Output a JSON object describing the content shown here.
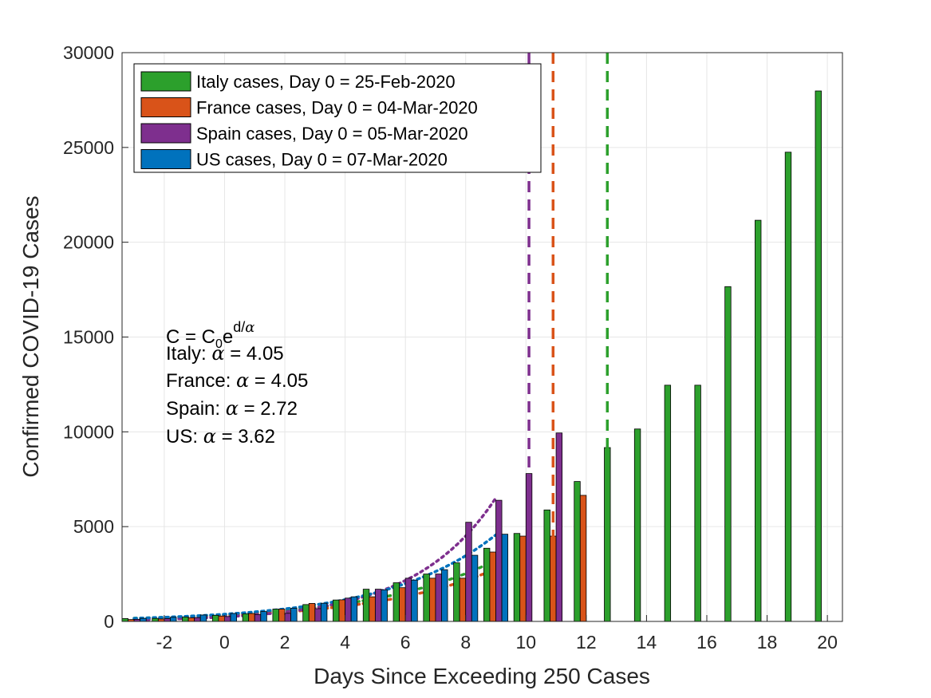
{
  "chart_data": {
    "type": "bar",
    "xlabel": "Days Since Exceeding 250 Cases",
    "ylabel": "Confirmed COVID-19 Cases",
    "xlim": [
      -3.4,
      20.5
    ],
    "ylim": [
      0,
      30000
    ],
    "xticks": [
      -2,
      0,
      2,
      4,
      6,
      8,
      10,
      12,
      14,
      16,
      18,
      20
    ],
    "yticks": [
      0,
      5000,
      10000,
      15000,
      20000,
      25000,
      30000
    ],
    "grid": true,
    "legend_position": "top-left",
    "series": [
      {
        "name": "Italy cases, Day 0 = 25-Feb-2020",
        "color": "#2ca02c",
        "days": [
          -3,
          -2,
          -1,
          0,
          1,
          2,
          3,
          4,
          5,
          6,
          7,
          8,
          9,
          10,
          11,
          12,
          13,
          14,
          15,
          16,
          17,
          18,
          19,
          20
        ],
        "values": [
          150,
          160,
          230,
          322,
          400,
          650,
          890,
          1130,
          1700,
          2040,
          2500,
          3090,
          3860,
          4640,
          5880,
          7380,
          9170,
          10150,
          12460,
          12460,
          17660,
          21160,
          24750,
          27980
        ]
      },
      {
        "name": "France cases, Day 0 = 04-Mar-2020",
        "color": "#d95319",
        "days": [
          -3,
          -2,
          -1,
          0,
          1,
          2,
          3,
          4,
          5,
          6,
          7,
          8,
          9,
          10,
          11,
          12
        ],
        "values": [
          100,
          130,
          190,
          285,
          420,
          650,
          950,
          1140,
          1300,
          1780,
          2280,
          2280,
          3660,
          4500,
          4500,
          6650
        ]
      },
      {
        "name": "Spain cases, Day 0 = 05-Mar-2020",
        "color": "#7e2f8e",
        "days": [
          -3,
          -2,
          -1,
          0,
          1,
          2,
          3,
          4,
          5,
          6,
          7,
          8,
          9,
          10,
          11
        ],
        "values": [
          110,
          150,
          200,
          260,
          365,
          430,
          674,
          1230,
          1700,
          2280,
          2500,
          5230,
          6390,
          7800,
          9940
        ]
      },
      {
        "name": "US cases, Day 0 = 07-Mar-2020",
        "color": "#0072bd",
        "days": [
          -3,
          -2,
          -1,
          0,
          1,
          2,
          3,
          4,
          5,
          6,
          7,
          8,
          9
        ],
        "values": [
          160,
          220,
          340,
          420,
          520,
          700,
          960,
          1300,
          1660,
          2180,
          2730,
          3490,
          4600
        ]
      }
    ],
    "fits": [
      {
        "series": "Italy",
        "alpha": 4.05,
        "color": "#2ca02c",
        "c0": 350,
        "day_range": [
          -3,
          9
        ]
      },
      {
        "series": "France",
        "alpha": 4.05,
        "color": "#d95319",
        "c0": 300,
        "day_range": [
          -3,
          9
        ]
      },
      {
        "series": "Spain",
        "alpha": 2.72,
        "color": "#7e2f8e",
        "c0": 238,
        "day_range": [
          -3,
          9
        ]
      },
      {
        "series": "US",
        "alpha": 3.62,
        "color": "#0072bd",
        "c0": 380,
        "day_range": [
          -3,
          9
        ]
      }
    ],
    "vlines": [
      {
        "x": 10.1,
        "color": "#7e2f8e"
      },
      {
        "x": 10.9,
        "color": "#d95319"
      },
      {
        "x": 12.7,
        "color": "#2ca02c"
      }
    ],
    "annotation": {
      "formula_parts": [
        "C = C",
        "0",
        "e",
        "d/",
        "α"
      ],
      "lines": [
        {
          "prefix": "Italy: ",
          "symbol": "α",
          "suffix": " = 4.05"
        },
        {
          "prefix": "France: ",
          "symbol": "α",
          "suffix": " = 4.05"
        },
        {
          "prefix": "Spain: ",
          "symbol": "α",
          "suffix": " = 2.72"
        },
        {
          "prefix": "US: ",
          "symbol": "α",
          "suffix": " = 3.62"
        }
      ]
    }
  }
}
